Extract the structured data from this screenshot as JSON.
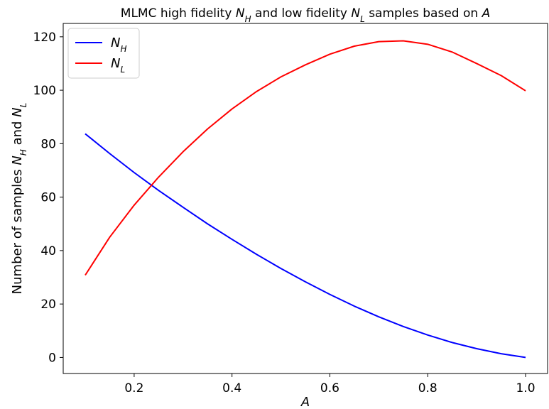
{
  "chart_data": {
    "type": "line",
    "title": {
      "parts": [
        {
          "text": "MLMC high fidelity ",
          "italic": false
        },
        {
          "text": "N",
          "italic": true
        },
        {
          "text": "H",
          "italic": true,
          "sub": true
        },
        {
          "text": " and low fidelity ",
          "italic": false
        },
        {
          "text": "N",
          "italic": true
        },
        {
          "text": "L",
          "italic": true,
          "sub": true
        },
        {
          "text": " samples based on ",
          "italic": false
        },
        {
          "text": "A",
          "italic": true
        }
      ]
    },
    "xlabel": "A",
    "ylabel": {
      "parts": [
        {
          "text": "Number of samples ",
          "italic": false
        },
        {
          "text": "N",
          "italic": true
        },
        {
          "text": "H",
          "italic": true,
          "sub": true
        },
        {
          "text": " and ",
          "italic": false
        },
        {
          "text": "N",
          "italic": true
        },
        {
          "text": "L",
          "italic": true,
          "sub": true
        }
      ]
    },
    "xlim": [
      0.055,
      1.045
    ],
    "ylim": [
      -6,
      125
    ],
    "xticks": [
      0.2,
      0.4,
      0.6,
      0.8,
      1.0
    ],
    "xtick_labels": [
      "0.2",
      "0.4",
      "0.6",
      "0.8",
      "1.0"
    ],
    "yticks": [
      0,
      20,
      40,
      60,
      80,
      100,
      120
    ],
    "ytick_labels": [
      "0",
      "20",
      "40",
      "60",
      "80",
      "100",
      "120"
    ],
    "grid": false,
    "legend_position": "top-left",
    "series": [
      {
        "name": "N_H",
        "legend_main": "N",
        "legend_sub": "H",
        "color": "#0000ff",
        "x": [
          0.1,
          0.15,
          0.2,
          0.25,
          0.3,
          0.35,
          0.4,
          0.45,
          0.5,
          0.55,
          0.6,
          0.65,
          0.7,
          0.75,
          0.8,
          0.85,
          0.9,
          0.95,
          1.0
        ],
        "y": [
          83.7,
          76.3,
          69.2,
          62.5,
          56.2,
          50.0,
          44.2,
          38.6,
          33.3,
          28.3,
          23.6,
          19.2,
          15.2,
          11.6,
          8.4,
          5.6,
          3.3,
          1.4,
          0.0
        ]
      },
      {
        "name": "N_L",
        "legend_main": "N",
        "legend_sub": "L",
        "color": "#ff0000",
        "x": [
          0.1,
          0.15,
          0.2,
          0.25,
          0.3,
          0.35,
          0.4,
          0.45,
          0.5,
          0.55,
          0.6,
          0.65,
          0.7,
          0.75,
          0.8,
          0.85,
          0.9,
          0.95,
          1.0
        ],
        "y": [
          30.8,
          45.0,
          57.0,
          67.5,
          77.0,
          85.5,
          93.0,
          99.5,
          105.0,
          109.5,
          113.5,
          116.5,
          118.2,
          118.5,
          117.2,
          114.3,
          110.0,
          105.5,
          99.8
        ]
      }
    ]
  }
}
